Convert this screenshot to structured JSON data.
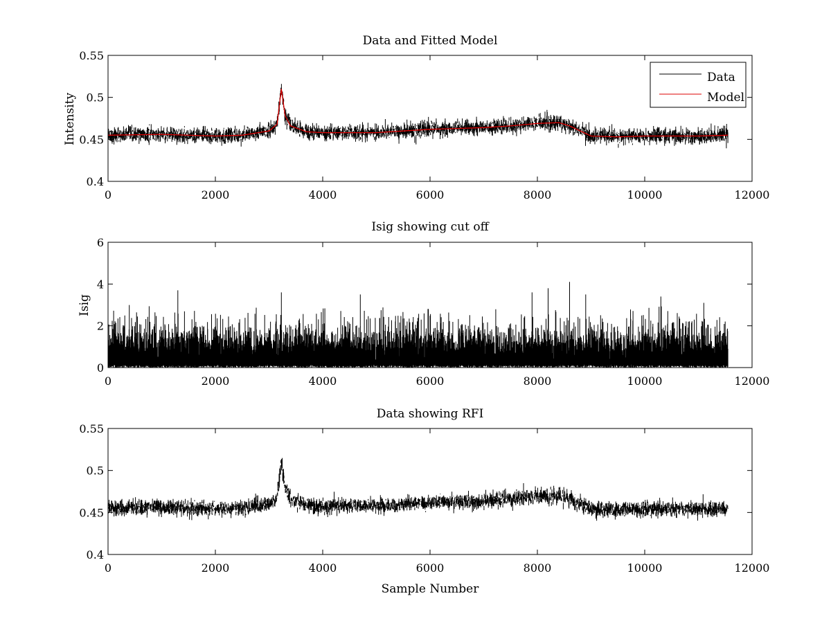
{
  "chart_data": [
    {
      "type": "line",
      "title": "Data and Fitted Model",
      "xlabel": "",
      "ylabel": "Intensity",
      "xlim": [
        0,
        12000
      ],
      "ylim": [
        0.4,
        0.55
      ],
      "xticks": [
        0,
        2000,
        4000,
        6000,
        8000,
        10000,
        12000
      ],
      "xtick_labels": [
        "0",
        "2000",
        "4000",
        "6000",
        "8000",
        "10000",
        "12000"
      ],
      "yticks": [
        0.4,
        0.45,
        0.5,
        0.55
      ],
      "ytick_labels": [
        "0.4",
        "0.45",
        "0.5",
        "0.55"
      ],
      "legend_position": "top-right",
      "series": [
        {
          "name": "Data",
          "color": "#000000",
          "x_range": [
            0,
            11550
          ],
          "noise": 0.0045,
          "x": [
            0,
            1000,
            2000,
            2500,
            3000,
            3150,
            3230,
            3300,
            3400,
            3700,
            4000,
            5000,
            5500,
            6000,
            6500,
            7000,
            7500,
            8000,
            8400,
            8600,
            9000,
            9500,
            10000,
            11000,
            11550
          ],
          "y": [
            0.455,
            0.456,
            0.454,
            0.455,
            0.46,
            0.468,
            0.51,
            0.478,
            0.466,
            0.459,
            0.458,
            0.458,
            0.46,
            0.462,
            0.463,
            0.464,
            0.466,
            0.469,
            0.47,
            0.466,
            0.454,
            0.453,
            0.454,
            0.454,
            0.455
          ]
        },
        {
          "name": "Model",
          "color": "#dd0000",
          "x": [
            0,
            1000,
            2000,
            2500,
            3000,
            3150,
            3230,
            3300,
            3400,
            3700,
            4000,
            5000,
            5500,
            6000,
            6500,
            7000,
            7500,
            8000,
            8400,
            8600,
            9000,
            9500,
            10000,
            11000,
            11550
          ],
          "y": [
            0.455,
            0.456,
            0.454,
            0.455,
            0.46,
            0.468,
            0.51,
            0.478,
            0.466,
            0.459,
            0.458,
            0.458,
            0.46,
            0.462,
            0.463,
            0.464,
            0.466,
            0.469,
            0.47,
            0.466,
            0.454,
            0.453,
            0.454,
            0.454,
            0.455
          ]
        }
      ]
    },
    {
      "type": "line",
      "title": "Isig showing cut off",
      "xlabel": "",
      "ylabel": "Isig",
      "xlim": [
        0,
        12000
      ],
      "ylim": [
        0,
        6
      ],
      "xticks": [
        0,
        2000,
        4000,
        6000,
        8000,
        10000,
        12000
      ],
      "xtick_labels": [
        "0",
        "2000",
        "4000",
        "6000",
        "8000",
        "10000",
        "12000"
      ],
      "yticks": [
        0,
        2,
        4,
        6
      ],
      "ytick_labels": [
        "0",
        "2",
        "4",
        "6"
      ],
      "series": [
        {
          "name": "Isig",
          "color": "#000000",
          "x_range": [
            0,
            11550
          ],
          "typical_range": [
            0,
            2.7
          ],
          "max": 4.1,
          "peaks": [
            {
              "x": 1300,
              "y": 3.7
            },
            {
              "x": 3230,
              "y": 3.6
            },
            {
              "x": 4700,
              "y": 3.5
            },
            {
              "x": 7900,
              "y": 3.6
            },
            {
              "x": 8200,
              "y": 3.8
            },
            {
              "x": 8600,
              "y": 4.1
            },
            {
              "x": 8900,
              "y": 3.5
            },
            {
              "x": 10300,
              "y": 3.4
            },
            {
              "x": 11100,
              "y": 3.1
            }
          ]
        }
      ]
    },
    {
      "type": "line",
      "title": "Data showing RFI",
      "xlabel": "Sample Number",
      "ylabel": "",
      "xlim": [
        0,
        12000
      ],
      "ylim": [
        0.4,
        0.55
      ],
      "xticks": [
        0,
        2000,
        4000,
        6000,
        8000,
        10000,
        12000
      ],
      "xtick_labels": [
        "0",
        "2000",
        "4000",
        "6000",
        "8000",
        "10000",
        "12000"
      ],
      "yticks": [
        0.4,
        0.45,
        0.5,
        0.55
      ],
      "ytick_labels": [
        "0.4",
        "0.45",
        "0.5",
        "0.55"
      ],
      "series": [
        {
          "name": "Data",
          "color": "#000000",
          "x_range": [
            0,
            11550
          ],
          "noise": 0.0045,
          "x": [
            0,
            1000,
            2000,
            2500,
            3000,
            3150,
            3230,
            3300,
            3400,
            3700,
            4000,
            5000,
            5500,
            6000,
            6500,
            7000,
            7500,
            8000,
            8400,
            8600,
            9000,
            9500,
            10000,
            11000,
            11550
          ],
          "y": [
            0.455,
            0.456,
            0.454,
            0.455,
            0.46,
            0.468,
            0.51,
            0.478,
            0.466,
            0.459,
            0.458,
            0.458,
            0.46,
            0.462,
            0.463,
            0.464,
            0.466,
            0.469,
            0.47,
            0.466,
            0.454,
            0.453,
            0.454,
            0.454,
            0.455
          ]
        }
      ]
    }
  ]
}
